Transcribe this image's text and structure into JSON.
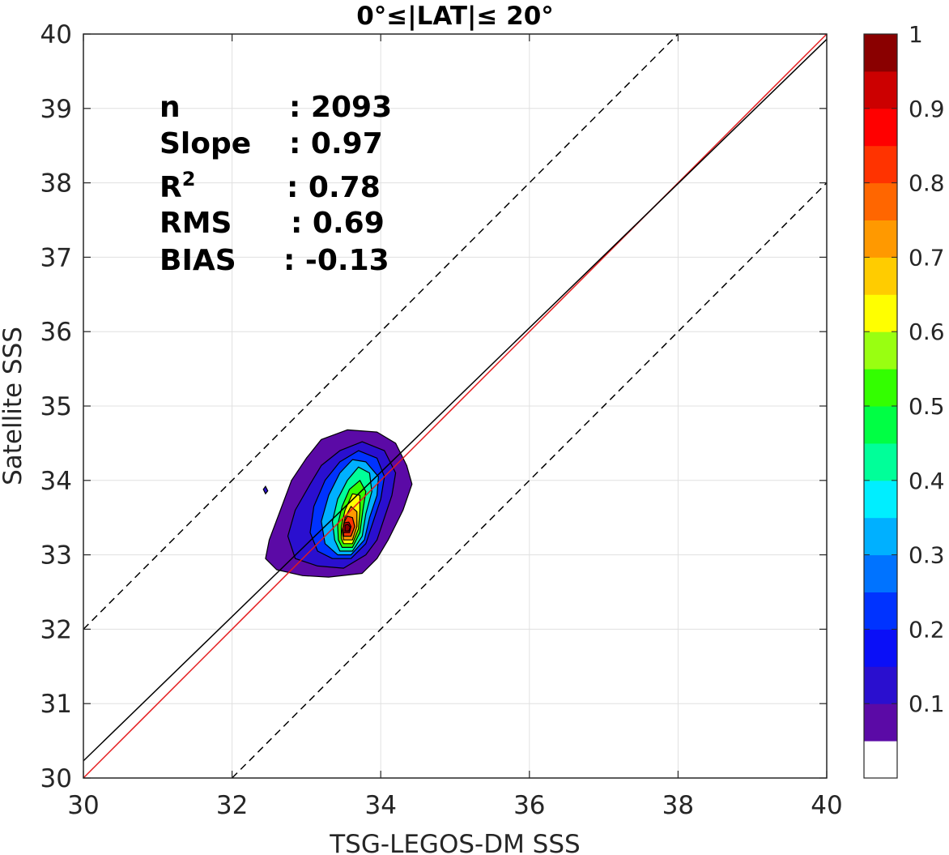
{
  "chart_data": {
    "type": "contour-density-scatter",
    "title": "0°≤|LAT|≤ 20°",
    "xlabel": "TSG-LEGOS-DM SSS",
    "ylabel": "Satellite SSS",
    "xlim": [
      30,
      40
    ],
    "ylim": [
      30,
      40
    ],
    "xticks": [
      "30",
      "32",
      "34",
      "36",
      "38",
      "40"
    ],
    "yticks": [
      "30",
      "31",
      "32",
      "33",
      "34",
      "35",
      "36",
      "37",
      "38",
      "39",
      "40"
    ],
    "grid": true,
    "stats": [
      {
        "label": "n",
        "value": ": 2093"
      },
      {
        "label": "Slope",
        "value": ": 0.97"
      },
      {
        "label": "R",
        "sup": "2",
        "value": ": 0.78"
      },
      {
        "label": "RMS",
        "value": ": 0.69"
      },
      {
        "label": "BIAS",
        "value": ": -0.13"
      }
    ],
    "lines": [
      {
        "kind": "one-to-one",
        "color": "#e41a1c",
        "slope": 1,
        "intercept": 0
      },
      {
        "kind": "regression",
        "color": "#000000",
        "slope": 0.97,
        "intercept": 1.13
      },
      {
        "kind": "offset-upper",
        "color": "#000000",
        "dashed": true,
        "slope": 1,
        "intercept": 2
      },
      {
        "kind": "offset-lower",
        "color": "#000000",
        "dashed": true,
        "slope": 1,
        "intercept": -2
      }
    ],
    "density_levels": [
      {
        "level": 0.05,
        "points": [
          [
            32.95,
            32.72
          ],
          [
            33.3,
            32.7
          ],
          [
            33.75,
            32.75
          ],
          [
            33.95,
            32.95
          ],
          [
            34.1,
            33.2
          ],
          [
            34.2,
            33.4
          ],
          [
            34.3,
            33.6
          ],
          [
            34.42,
            33.95
          ],
          [
            34.35,
            34.2
          ],
          [
            34.2,
            34.5
          ],
          [
            33.95,
            34.65
          ],
          [
            33.55,
            34.68
          ],
          [
            33.2,
            34.55
          ],
          [
            33.0,
            34.3
          ],
          [
            32.8,
            34.0
          ],
          [
            32.65,
            33.6
          ],
          [
            32.5,
            33.2
          ],
          [
            32.45,
            32.95
          ],
          [
            32.6,
            32.8
          ]
        ]
      },
      {
        "level": 0.1,
        "points": [
          [
            33.15,
            32.85
          ],
          [
            33.5,
            32.82
          ],
          [
            33.8,
            33.0
          ],
          [
            33.95,
            33.2
          ],
          [
            34.05,
            33.5
          ],
          [
            34.15,
            33.8
          ],
          [
            34.2,
            34.1
          ],
          [
            34.05,
            34.4
          ],
          [
            33.75,
            34.52
          ],
          [
            33.45,
            34.4
          ],
          [
            33.2,
            34.2
          ],
          [
            33.05,
            33.95
          ],
          [
            32.85,
            33.6
          ],
          [
            32.75,
            33.25
          ],
          [
            32.85,
            32.95
          ]
        ]
      },
      {
        "level": 0.2,
        "points": [
          [
            33.35,
            32.95
          ],
          [
            33.6,
            32.95
          ],
          [
            33.8,
            33.15
          ],
          [
            33.9,
            33.45
          ],
          [
            34.0,
            33.75
          ],
          [
            34.05,
            34.05
          ],
          [
            33.95,
            34.3
          ],
          [
            33.7,
            34.4
          ],
          [
            33.45,
            34.25
          ],
          [
            33.25,
            34.0
          ],
          [
            33.1,
            33.65
          ],
          [
            33.05,
            33.3
          ],
          [
            33.15,
            33.05
          ]
        ]
      },
      {
        "level": 0.3,
        "points": [
          [
            33.42,
            33.0
          ],
          [
            33.6,
            33.0
          ],
          [
            33.78,
            33.2
          ],
          [
            33.85,
            33.5
          ],
          [
            33.95,
            33.8
          ],
          [
            33.97,
            34.05
          ],
          [
            33.8,
            34.25
          ],
          [
            33.62,
            34.28
          ],
          [
            33.45,
            34.1
          ],
          [
            33.3,
            33.8
          ],
          [
            33.2,
            33.45
          ],
          [
            33.25,
            33.15
          ]
        ]
      },
      {
        "level": 0.4,
        "points": [
          [
            33.45,
            33.05
          ],
          [
            33.62,
            33.05
          ],
          [
            33.75,
            33.25
          ],
          [
            33.8,
            33.55
          ],
          [
            33.88,
            33.85
          ],
          [
            33.85,
            34.1
          ],
          [
            33.7,
            34.18
          ],
          [
            33.55,
            34.0
          ],
          [
            33.42,
            33.75
          ],
          [
            33.35,
            33.45
          ],
          [
            33.38,
            33.2
          ]
        ]
      },
      {
        "level": 0.5,
        "points": [
          [
            33.48,
            33.1
          ],
          [
            33.62,
            33.1
          ],
          [
            33.72,
            33.3
          ],
          [
            33.76,
            33.6
          ],
          [
            33.8,
            33.85
          ],
          [
            33.72,
            34.0
          ],
          [
            33.58,
            33.88
          ],
          [
            33.48,
            33.65
          ],
          [
            33.42,
            33.4
          ],
          [
            33.43,
            33.2
          ]
        ]
      },
      {
        "level": 0.6,
        "points": [
          [
            33.5,
            33.15
          ],
          [
            33.62,
            33.15
          ],
          [
            33.7,
            33.35
          ],
          [
            33.72,
            33.6
          ],
          [
            33.72,
            33.8
          ],
          [
            33.62,
            33.82
          ],
          [
            33.52,
            33.6
          ],
          [
            33.47,
            33.38
          ],
          [
            33.47,
            33.22
          ]
        ]
      },
      {
        "level": 0.7,
        "points": [
          [
            33.5,
            33.2
          ],
          [
            33.62,
            33.2
          ],
          [
            33.68,
            33.38
          ],
          [
            33.68,
            33.58
          ],
          [
            33.6,
            33.65
          ],
          [
            33.52,
            33.5
          ],
          [
            33.48,
            33.32
          ]
        ]
      },
      {
        "level": 0.8,
        "points": [
          [
            33.5,
            33.25
          ],
          [
            33.6,
            33.25
          ],
          [
            33.65,
            33.38
          ],
          [
            33.62,
            33.5
          ],
          [
            33.55,
            33.52
          ],
          [
            33.5,
            33.42
          ]
        ]
      },
      {
        "level": 0.9,
        "points": [
          [
            33.5,
            33.3
          ],
          [
            33.58,
            33.3
          ],
          [
            33.6,
            33.38
          ],
          [
            33.57,
            33.44
          ],
          [
            33.51,
            33.43
          ],
          [
            33.49,
            33.36
          ]
        ]
      },
      {
        "level": 0.95,
        "points": [
          [
            33.52,
            33.32
          ],
          [
            33.57,
            33.32
          ],
          [
            33.59,
            33.37
          ],
          [
            33.56,
            33.41
          ],
          [
            33.52,
            33.4
          ]
        ]
      }
    ],
    "isolated_blob": {
      "level": 0.1,
      "points": [
        [
          32.42,
          33.88
        ],
        [
          32.45,
          33.92
        ],
        [
          32.48,
          33.86
        ],
        [
          32.45,
          33.82
        ]
      ]
    },
    "colorbar": {
      "range": [
        0,
        1
      ],
      "tick_labels": [
        "0.1",
        "0.2",
        "0.3",
        "0.4",
        "0.5",
        "0.6",
        "0.7",
        "0.8",
        "0.9",
        "1"
      ],
      "tick_values": [
        0.1,
        0.2,
        0.3,
        0.4,
        0.5,
        0.6,
        0.7,
        0.8,
        0.9,
        1.0
      ],
      "colors": [
        "#ffffff",
        "#5b0aa6",
        "#2a0fcf",
        "#0a0ff7",
        "#0033ff",
        "#0073ff",
        "#00b0ff",
        "#00eeff",
        "#00ff99",
        "#00ff44",
        "#33ff00",
        "#99ff11",
        "#ffff00",
        "#ffcc00",
        "#ff9900",
        "#ff6600",
        "#ff3300",
        "#ff0000",
        "#cc0000",
        "#8a0000"
      ]
    }
  }
}
